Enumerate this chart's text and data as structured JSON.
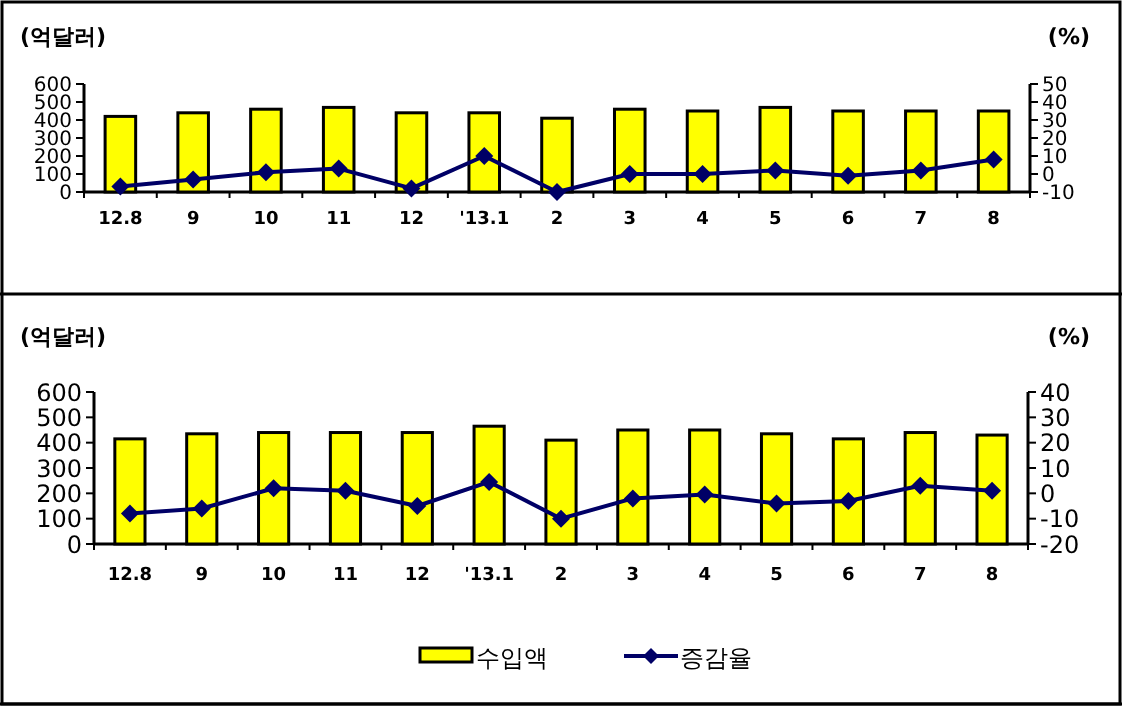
{
  "chart_data": [
    {
      "type": "bar",
      "ylabel": "(억달러)",
      "y2label": "(%)",
      "categories": [
        "12.8",
        "9",
        "10",
        "11",
        "12",
        "'13.1",
        "2",
        "3",
        "4",
        "5",
        "6",
        "7",
        "8"
      ],
      "ylim": [
        0,
        600
      ],
      "yticks": [
        0,
        100,
        200,
        300,
        400,
        500,
        600
      ],
      "y2lim": [
        -10,
        50
      ],
      "y2ticks": [
        -10,
        0,
        10,
        20,
        30,
        40,
        50
      ],
      "marker": "diamond",
      "legend": false,
      "series": [
        {
          "color": "#ffff00",
          "values": [
            420,
            440,
            460,
            470,
            440,
            440,
            410,
            460,
            450,
            470,
            450,
            450,
            450
          ]
        },
        {
          "type": "line",
          "axis": "y2",
          "color": "#000066",
          "values": [
            -7,
            -3,
            1,
            3,
            -8,
            10,
            -10,
            0,
            0,
            2,
            -1,
            2,
            8
          ]
        }
      ]
    },
    {
      "type": "bar",
      "ylabel": "(억달러)",
      "y2label": "(%)",
      "categories": [
        "12.8",
        "9",
        "10",
        "11",
        "12",
        "'13.1",
        "2",
        "3",
        "4",
        "5",
        "6",
        "7",
        "8"
      ],
      "ylim": [
        0,
        600
      ],
      "yticks": [
        0,
        100,
        200,
        300,
        400,
        500,
        600
      ],
      "y2lim": [
        -20,
        40
      ],
      "y2ticks": [
        -20,
        -10,
        0,
        10,
        20,
        30,
        40
      ],
      "marker": "diamond",
      "legend": "bottom",
      "series": [
        {
          "name": "수입액",
          "color": "#ffff00",
          "values": [
            415,
            435,
            440,
            440,
            440,
            465,
            410,
            450,
            450,
            435,
            415,
            440,
            430
          ]
        },
        {
          "type": "line",
          "axis": "y2",
          "name": "증감율",
          "color": "#000066",
          "values": [
            -8,
            -6,
            2,
            1,
            -5,
            4.5,
            -10,
            -2,
            -0.5,
            -4,
            -3,
            3,
            1
          ]
        }
      ]
    }
  ]
}
